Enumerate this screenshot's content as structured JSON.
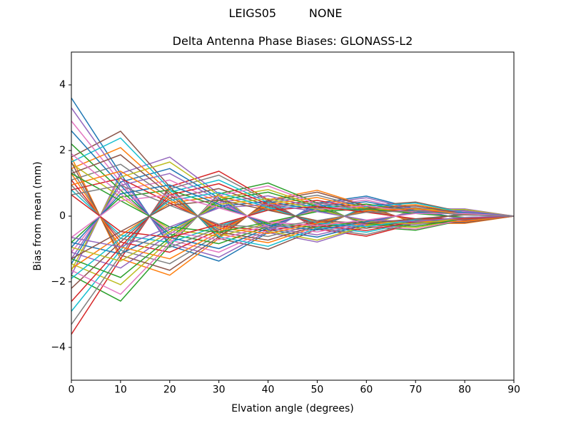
{
  "figure": {
    "suptitle": "LEIGS05         NONE",
    "background": "#ffffff"
  },
  "chart_data": {
    "type": "line",
    "title": "Delta Antenna Phase Biases: GLONASS-L2",
    "xlabel": "Elvation angle (degrees)",
    "ylabel": "Bias from mean (mm)",
    "xlim": [
      0,
      90
    ],
    "ylim": [
      -5,
      5
    ],
    "x_ticks": [
      0,
      10,
      20,
      30,
      40,
      50,
      60,
      70,
      80,
      90
    ],
    "x_tick_labels": [
      "0",
      "10",
      "20",
      "30",
      "40",
      "50",
      "60",
      "70",
      "80",
      "90"
    ],
    "y_ticks": [
      -4,
      -2,
      0,
      2,
      4
    ],
    "y_tick_labels": [
      "−4",
      "−2",
      "0",
      "2",
      "4"
    ],
    "grid": false,
    "legend": "none",
    "axis_color": "#000000",
    "x": [
      0,
      10,
      20,
      30,
      40,
      50,
      60,
      70,
      80,
      90
    ],
    "series": [
      {
        "color": "#1f77b4",
        "values": [
          3.6,
          1.3,
          -0.9,
          -1.37,
          -0.5,
          0.4,
          0.61,
          0.22,
          -0.11,
          0
        ]
      },
      {
        "color": "#ff7f0e",
        "values": [
          1.8,
          -1.3,
          -1.8,
          -0.68,
          0.5,
          0.79,
          0.32,
          -0.22,
          -0.22,
          0
        ]
      },
      {
        "color": "#2ca02c",
        "values": [
          -1.8,
          -2.59,
          -0.9,
          0.68,
          1.01,
          0.4,
          -0.32,
          -0.43,
          -0.11,
          0
        ]
      },
      {
        "color": "#d62728",
        "values": [
          -3.6,
          -1.3,
          0.9,
          1.37,
          0.5,
          -0.4,
          -0.61,
          -0.22,
          0.11,
          0
        ]
      },
      {
        "color": "#9467bd",
        "values": [
          -1.8,
          1.3,
          1.8,
          0.68,
          -0.5,
          -0.79,
          -0.32,
          0.22,
          0.22,
          0
        ]
      },
      {
        "color": "#8c564b",
        "values": [
          1.8,
          2.59,
          0.9,
          -0.68,
          -1.01,
          -0.4,
          0.32,
          0.43,
          0.11,
          0
        ]
      },
      {
        "color": "#e377c2",
        "values": [
          2.9,
          1.04,
          -0.73,
          -1.1,
          -0.41,
          0.32,
          0.49,
          0.17,
          -0.09,
          0
        ]
      },
      {
        "color": "#7f7f7f",
        "values": [
          1.45,
          -1.04,
          -1.45,
          -0.55,
          0.41,
          0.64,
          0.26,
          -0.17,
          -0.17,
          0
        ]
      },
      {
        "color": "#bcbd22",
        "values": [
          -1.45,
          -2.09,
          -0.73,
          0.55,
          0.81,
          0.32,
          -0.26,
          -0.35,
          -0.09,
          0
        ]
      },
      {
        "color": "#17becf",
        "values": [
          -2.9,
          -1.04,
          0.73,
          1.1,
          0.41,
          -0.32,
          -0.49,
          -0.17,
          0.09,
          0
        ]
      },
      {
        "color": "#1f77b4",
        "values": [
          -1.45,
          1.04,
          1.45,
          0.55,
          -0.41,
          -0.64,
          -0.26,
          0.17,
          0.17,
          0
        ]
      },
      {
        "color": "#ff7f0e",
        "values": [
          1.45,
          2.09,
          0.73,
          -0.55,
          -0.81,
          -0.32,
          0.26,
          0.35,
          0.09,
          0
        ]
      },
      {
        "color": "#2ca02c",
        "values": [
          2.2,
          0.79,
          -0.55,
          -0.84,
          -0.31,
          0.24,
          0.37,
          0.13,
          -0.07,
          0
        ]
      },
      {
        "color": "#d62728",
        "values": [
          1.1,
          -0.79,
          -1.1,
          -0.42,
          0.31,
          0.48,
          0.2,
          -0.13,
          -0.13,
          0
        ]
      },
      {
        "color": "#9467bd",
        "values": [
          -1.1,
          -1.58,
          -0.55,
          0.42,
          0.62,
          0.24,
          -0.2,
          -0.26,
          -0.07,
          0
        ]
      },
      {
        "color": "#8c564b",
        "values": [
          -2.2,
          -0.79,
          0.55,
          0.84,
          0.31,
          -0.24,
          -0.37,
          -0.13,
          0.07,
          0
        ]
      },
      {
        "color": "#e377c2",
        "values": [
          -1.1,
          0.79,
          1.1,
          0.42,
          -0.31,
          -0.48,
          -0.2,
          0.13,
          0.13,
          0
        ]
      },
      {
        "color": "#7f7f7f",
        "values": [
          1.1,
          1.58,
          0.55,
          -0.42,
          -0.62,
          -0.24,
          0.2,
          0.26,
          0.07,
          0
        ]
      },
      {
        "color": "#bcbd22",
        "values": [
          1.6,
          0.58,
          -0.4,
          -0.61,
          -0.22,
          0.18,
          0.27,
          0.1,
          -0.05,
          0
        ]
      },
      {
        "color": "#17becf",
        "values": [
          0.8,
          -0.58,
          -0.8,
          -0.3,
          0.22,
          0.35,
          0.14,
          -0.1,
          -0.1,
          0
        ]
      },
      {
        "color": "#1f77b4",
        "values": [
          -0.8,
          -1.15,
          -0.4,
          0.3,
          0.45,
          0.18,
          -0.14,
          -0.19,
          -0.05,
          0
        ]
      },
      {
        "color": "#ff7f0e",
        "values": [
          -1.6,
          -0.58,
          0.4,
          0.61,
          0.22,
          -0.18,
          -0.27,
          -0.1,
          0.05,
          0
        ]
      },
      {
        "color": "#2ca02c",
        "values": [
          -0.8,
          0.58,
          0.8,
          0.3,
          -0.22,
          -0.35,
          -0.14,
          0.1,
          0.1,
          0
        ]
      },
      {
        "color": "#d62728",
        "values": [
          0.8,
          1.15,
          0.4,
          -0.3,
          -0.45,
          -0.18,
          0.14,
          0.19,
          0.05,
          0
        ]
      },
      {
        "color": "#9467bd",
        "values": [
          3.3,
          1.19,
          -0.83,
          -1.25,
          -0.46,
          0.36,
          0.56,
          0.2,
          -0.1,
          0
        ]
      },
      {
        "color": "#8c564b",
        "values": [
          1.65,
          -1.19,
          -1.65,
          -0.63,
          0.46,
          0.73,
          0.3,
          -0.2,
          -0.2,
          0
        ]
      },
      {
        "color": "#e377c2",
        "values": [
          -1.65,
          -2.38,
          -0.83,
          0.63,
          0.92,
          0.36,
          -0.3,
          -0.4,
          -0.1,
          0
        ]
      },
      {
        "color": "#7f7f7f",
        "values": [
          -3.3,
          -1.19,
          0.83,
          1.25,
          0.46,
          -0.36,
          -0.56,
          -0.2,
          0.1,
          0
        ]
      },
      {
        "color": "#bcbd22",
        "values": [
          -1.65,
          1.19,
          1.65,
          0.63,
          -0.46,
          -0.73,
          -0.3,
          0.2,
          0.2,
          0
        ]
      },
      {
        "color": "#17becf",
        "values": [
          1.65,
          2.38,
          0.83,
          -0.63,
          -0.92,
          -0.36,
          0.3,
          0.4,
          0.1,
          0
        ]
      },
      {
        "color": "#1f77b4",
        "values": [
          2.6,
          0.94,
          -0.65,
          -0.99,
          -0.36,
          0.29,
          0.44,
          0.16,
          -0.08,
          0
        ]
      },
      {
        "color": "#ff7f0e",
        "values": [
          1.3,
          -0.94,
          -1.3,
          -0.49,
          0.36,
          0.57,
          0.23,
          -0.16,
          -0.16,
          0
        ]
      },
      {
        "color": "#2ca02c",
        "values": [
          -1.3,
          -1.87,
          -0.65,
          0.49,
          0.73,
          0.29,
          -0.23,
          -0.31,
          -0.08,
          0
        ]
      },
      {
        "color": "#d62728",
        "values": [
          -2.6,
          -0.94,
          0.65,
          0.99,
          0.36,
          -0.29,
          -0.44,
          -0.16,
          0.08,
          0
        ]
      },
      {
        "color": "#9467bd",
        "values": [
          -1.3,
          0.94,
          1.3,
          0.49,
          -0.36,
          -0.57,
          -0.23,
          0.16,
          0.16,
          0
        ]
      },
      {
        "color": "#8c564b",
        "values": [
          1.3,
          1.87,
          0.65,
          -0.49,
          -0.73,
          -0.29,
          0.23,
          0.31,
          0.08,
          0
        ]
      },
      {
        "color": "#e377c2",
        "values": [
          1.9,
          0.68,
          -0.48,
          -0.72,
          -0.27,
          0.21,
          0.32,
          0.11,
          -0.06,
          0
        ]
      },
      {
        "color": "#7f7f7f",
        "values": [
          0.95,
          -0.68,
          -0.95,
          -0.36,
          0.27,
          0.42,
          0.17,
          -0.11,
          -0.11,
          0
        ]
      },
      {
        "color": "#bcbd22",
        "values": [
          -0.95,
          -1.37,
          -0.48,
          0.36,
          0.53,
          0.21,
          -0.17,
          -0.23,
          -0.06,
          0
        ]
      },
      {
        "color": "#17becf",
        "values": [
          -1.9,
          -0.68,
          0.48,
          0.72,
          0.27,
          -0.21,
          -0.32,
          -0.11,
          0.06,
          0
        ]
      },
      {
        "color": "#1f77b4",
        "values": [
          -0.95,
          0.68,
          0.95,
          0.36,
          -0.27,
          -0.42,
          -0.17,
          0.11,
          0.11,
          0
        ]
      },
      {
        "color": "#ff7f0e",
        "values": [
          0.95,
          1.37,
          0.48,
          -0.36,
          -0.53,
          -0.21,
          0.17,
          0.23,
          0.06,
          0
        ]
      },
      {
        "color": "#2ca02c",
        "values": [
          1.3,
          0.47,
          -0.33,
          -0.49,
          -0.18,
          0.14,
          0.22,
          0.08,
          -0.04,
          0
        ]
      },
      {
        "color": "#d62728",
        "values": [
          0.65,
          -0.47,
          -0.65,
          -0.25,
          0.18,
          0.29,
          0.12,
          -0.08,
          -0.08,
          0
        ]
      },
      {
        "color": "#9467bd",
        "values": [
          -0.65,
          -0.94,
          -0.33,
          0.25,
          0.36,
          0.14,
          -0.12,
          -0.16,
          -0.04,
          0
        ]
      },
      {
        "color": "#8c564b",
        "values": [
          -1.3,
          -0.47,
          0.33,
          0.49,
          0.18,
          -0.14,
          -0.22,
          -0.08,
          0.04,
          0
        ]
      },
      {
        "color": "#e377c2",
        "values": [
          -0.65,
          0.47,
          0.65,
          0.25,
          -0.18,
          -0.29,
          -0.12,
          0.08,
          0.08,
          0
        ]
      },
      {
        "color": "#7f7f7f",
        "values": [
          0.65,
          0.94,
          0.33,
          -0.25,
          -0.36,
          -0.14,
          0.12,
          0.16,
          0.04,
          0
        ]
      }
    ]
  }
}
